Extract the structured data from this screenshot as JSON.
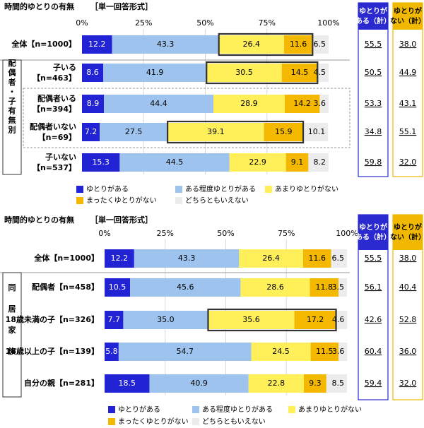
{
  "chart_data": [
    {
      "type": "bar",
      "orientation": "horizontal",
      "stacked": true,
      "title": "時間的ゆとりの有無",
      "subtitle": "［単一回答形式］",
      "x_ticks": [
        "0%",
        "25%",
        "50%",
        "75%",
        "100%"
      ],
      "xlim": [
        0,
        100
      ],
      "group_label": "配偶者・子有無別",
      "categories": [
        "全体【n=1000】",
        "子いる【n=463】",
        "配偶者いる【n=394】",
        "配偶者いない【n=69】",
        "子いない【n=537】"
      ],
      "series": [
        {
          "name": "ゆとりがある",
          "values": [
            12.2,
            8.6,
            8.9,
            7.2,
            15.3
          ]
        },
        {
          "name": "ある程度ゆとりがある",
          "values": [
            43.3,
            41.9,
            44.4,
            27.5,
            44.5
          ]
        },
        {
          "name": "あまりゆとりがない",
          "values": [
            26.4,
            30.5,
            28.9,
            39.1,
            22.9
          ]
        },
        {
          "name": "まったくゆとりがない",
          "values": [
            11.6,
            14.5,
            14.2,
            15.9,
            9.1
          ]
        },
        {
          "name": "どちらともいえない",
          "values": [
            6.5,
            4.5,
            3.6,
            10.1,
            8.2
          ]
        }
      ],
      "highlighted_rows": [
        0,
        1,
        3
      ],
      "summary_headers": [
        "ゆとりがある（計）",
        "ゆとりがない（計）"
      ],
      "summary_values": [
        [
          "55.5",
          "38.0"
        ],
        [
          "50.5",
          "44.9"
        ],
        [
          "53.3",
          "43.1"
        ],
        [
          "34.8",
          "55.1"
        ],
        [
          "59.8",
          "32.0"
        ]
      ]
    },
    {
      "type": "bar",
      "orientation": "horizontal",
      "stacked": true,
      "title": "時間的ゆとりの有無",
      "subtitle": "［単一回答形式］",
      "x_ticks": [
        "0%",
        "25%",
        "50%",
        "75%",
        "100%"
      ],
      "xlim": [
        0,
        100
      ],
      "group_label": "同居家族",
      "categories": [
        "全体【n=1000】",
        "配偶者【n=458】",
        "18歳未満の子【n=326】",
        "18歳以上の子【n=139】",
        "自分の親【n=281】"
      ],
      "series": [
        {
          "name": "ゆとりがある",
          "values": [
            12.2,
            10.5,
            7.7,
            5.8,
            18.5
          ]
        },
        {
          "name": "ある程度ゆとりがある",
          "values": [
            43.3,
            45.6,
            35.0,
            54.7,
            40.9
          ]
        },
        {
          "name": "あまりゆとりがない",
          "values": [
            26.4,
            28.6,
            35.6,
            24.5,
            22.8
          ]
        },
        {
          "name": "まったくゆとりがない",
          "values": [
            11.6,
            11.8,
            17.2,
            11.5,
            9.3
          ]
        },
        {
          "name": "どちらともいえない",
          "values": [
            6.5,
            3.5,
            4.6,
            3.6,
            8.5
          ]
        }
      ],
      "highlighted_rows": [
        2
      ],
      "summary_headers": [
        "ゆとりがある（計）",
        "ゆとりがない（計）"
      ],
      "summary_values": [
        [
          "55.5",
          "38.0"
        ],
        [
          "56.1",
          "40.4"
        ],
        [
          "42.6",
          "52.8"
        ],
        [
          "60.4",
          "36.0"
        ],
        [
          "59.4",
          "32.0"
        ]
      ]
    }
  ],
  "legend": [
    "ゆとりがある",
    "ある程度ゆとりがある",
    "あまりゆとりがない",
    "まったくゆとりがない",
    "どちらともいえない"
  ],
  "colors": {
    "series": [
      "#2323d6",
      "#9dc3ee",
      "#fff05a",
      "#f5b800",
      "#ececec"
    ],
    "left_header_border": "#2a2ad0",
    "right_header_border": "#f0b800",
    "highlight_border": "#333333"
  }
}
